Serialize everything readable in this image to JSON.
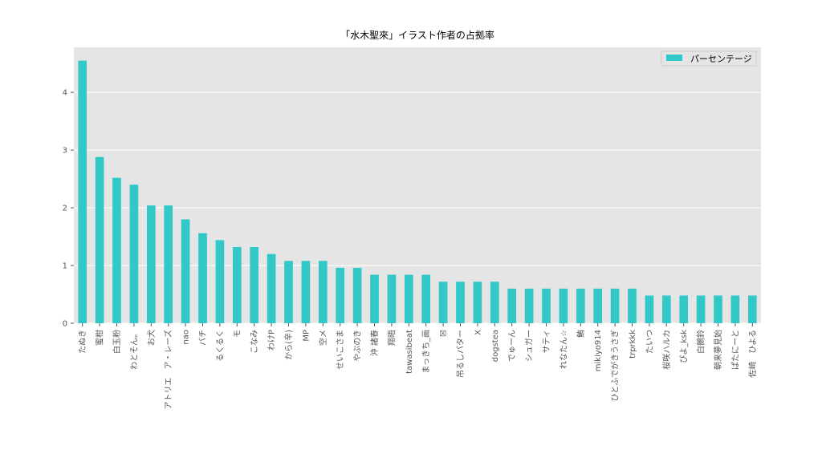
{
  "chart_data": {
    "type": "bar",
    "title": "「水木聖來」イラスト作者の占拠率",
    "xlabel": "",
    "ylabel": "",
    "ylim": [
      0,
      4.78
    ],
    "yticks": [
      0,
      1,
      2,
      3,
      4
    ],
    "grid": true,
    "legend_position": "top-right",
    "categories": [
      "たぬき",
      "蜜柑",
      "白玉粉",
      "わとそん。",
      "お犬",
      "アトリエ　ア・レーズ",
      "nao",
      "バチ",
      "るくるく",
      "モ",
      "こなみ",
      "わけP",
      "から(辛)",
      "MP",
      "空メ",
      "せいこさま",
      "やぶのき",
      "沖 諸春",
      "翔晤",
      "tawasibeat",
      "まっきち_画",
      "☒",
      "吊るしバター",
      "X",
      "dogstea",
      "でゅーん",
      "シュガー",
      "サティ",
      "れなたん☆",
      "鮪",
      "mikiyo914",
      "ひとふでがきうさぎ",
      "trprkkk",
      "たいつ",
      "桜咲ハルカ",
      "ぴよ_ksk",
      "白鵺鈴",
      "朝来夢見始",
      "ぱたにーと",
      "佐崎　ひよる"
    ],
    "series": [
      {
        "name": "パーセンテージ",
        "color": "#33c8c8",
        "values": [
          4.55,
          2.88,
          2.52,
          2.4,
          2.04,
          2.04,
          1.8,
          1.56,
          1.44,
          1.32,
          1.32,
          1.2,
          1.08,
          1.08,
          1.08,
          0.96,
          0.96,
          0.84,
          0.84,
          0.84,
          0.84,
          0.72,
          0.72,
          0.72,
          0.72,
          0.6,
          0.6,
          0.6,
          0.6,
          0.6,
          0.6,
          0.6,
          0.6,
          0.48,
          0.48,
          0.48,
          0.48,
          0.48,
          0.48,
          0.48
        ]
      }
    ]
  }
}
